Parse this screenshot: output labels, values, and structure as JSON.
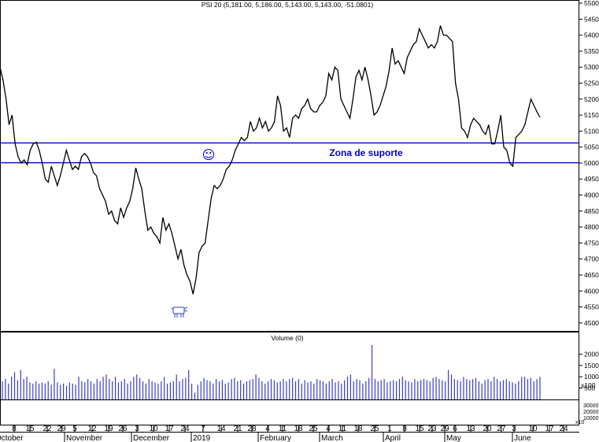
{
  "chart_data": {
    "type": "line",
    "title": "PSI 20 (5,181.00, 5,186.00, 5,143.00, 5,143.00, -51.0801)",
    "volume_title": "Volume (0)",
    "y_ticks": [
      4500,
      4550,
      4600,
      4650,
      4700,
      4750,
      4800,
      4850,
      4900,
      4950,
      5000,
      5050,
      5100,
      5150,
      5200,
      5250,
      5300,
      5350,
      5400,
      5450,
      5500
    ],
    "ylim": [
      4475,
      5510
    ],
    "volume_ticks": [
      {
        "v": 2000,
        "label": "2000"
      },
      {
        "v": 1500,
        "label": "1500"
      },
      {
        "v": 1000,
        "label": "1000"
      },
      {
        "v": 500,
        "label": "500"
      }
    ],
    "volume_multiplier": "x100",
    "volume_ylim": [
      0,
      2500
    ],
    "lower_ticks": [
      "30000",
      "20000",
      "10000"
    ],
    "lower_multiplier": "x10",
    "day_ticks": [
      "8",
      "15",
      "22",
      "29",
      "5",
      "12",
      "19",
      "26",
      "3",
      "10",
      "17",
      "24",
      "7",
      "14",
      "21",
      "28",
      "4",
      "11",
      "18",
      "25",
      "4",
      "11",
      "18",
      "25",
      "1",
      "8",
      "15",
      "23",
      "29",
      "6",
      "13",
      "20",
      "27",
      "3",
      "10",
      "17",
      "24"
    ],
    "month_labels": [
      "October",
      "November",
      "December",
      "2019",
      "February",
      "March",
      "April",
      "May",
      "June"
    ],
    "support_zone": {
      "label": "Zona de suporte",
      "upper": 5063,
      "lower": 5001,
      "color": "#0000cc"
    },
    "smiley": "☺",
    "series": [
      {
        "values": [
          5300,
          5260,
          5200,
          5120,
          5150,
          5060,
          5020,
          5000,
          5010,
          4995,
          5040,
          5060,
          5065,
          5040,
          5000,
          4950,
          4940,
          4990,
          4960,
          4930,
          4960,
          5000,
          5040,
          5010,
          4980,
          4990,
          4980,
          5020,
          5030,
          5020,
          5000,
          4970,
          4960,
          4920,
          4900,
          4880,
          4840,
          4850,
          4820,
          4810,
          4860,
          4830,
          4860,
          4880,
          4920,
          4985,
          4950,
          4920,
          4850,
          4790,
          4800,
          4780,
          4770,
          4750,
          4830,
          4790,
          4810,
          4780,
          4740,
          4700,
          4730,
          4680,
          4650,
          4630,
          4590,
          4640,
          4720,
          4740,
          4750,
          4820,
          4890,
          4930,
          4920,
          4930,
          4950,
          4980,
          4990,
          5010,
          5040,
          5060,
          5080,
          5070,
          5080,
          5130,
          5100,
          5110,
          5140,
          5110,
          5130,
          5100,
          5110,
          5130,
          5210,
          5180,
          5100,
          5110,
          5080,
          5140,
          5150,
          5140,
          5170,
          5180,
          5200,
          5170,
          5160,
          5160,
          5180,
          5190,
          5210,
          5280,
          5260,
          5300,
          5290,
          5200,
          5180,
          5160,
          5140,
          5200,
          5270,
          5290,
          5260,
          5300,
          5260,
          5210,
          5150,
          5160,
          5180,
          5210,
          5240,
          5290,
          5360,
          5310,
          5320,
          5300,
          5280,
          5330,
          5350,
          5370,
          5380,
          5420,
          5400,
          5380,
          5360,
          5370,
          5360,
          5380,
          5430,
          5400,
          5400,
          5390,
          5380,
          5250,
          5200,
          5110,
          5100,
          5080,
          5120,
          5140,
          5130,
          5120,
          5100,
          5090,
          5120,
          5060,
          5060,
          5100,
          5150,
          5050,
          5040,
          5000,
          4990,
          5080,
          5090,
          5100,
          5120,
          5160,
          5200,
          5180,
          5160,
          5143
        ]
      }
    ],
    "volume": [
      800,
      900,
      700,
      1000,
      1200,
      850,
      1300,
      900,
      1000,
      750,
      700,
      800,
      700,
      750,
      700,
      800,
      650,
      1350,
      750,
      650,
      700,
      600,
      750,
      700,
      650,
      1000,
      800,
      750,
      900,
      800,
      700,
      900,
      800,
      1000,
      1100,
      900,
      800,
      1000,
      750,
      800,
      900,
      700,
      800,
      1000,
      1100,
      950,
      800,
      700,
      900,
      800,
      750,
      700,
      800,
      1000,
      700,
      750,
      800,
      1100,
      800,
      900,
      950,
      1300,
      700,
      300,
      650,
      800,
      950,
      850,
      800,
      700,
      900,
      800,
      850,
      700,
      750,
      900,
      950,
      800,
      850,
      700,
      800,
      850,
      900,
      1100,
      950,
      800,
      700,
      800,
      900,
      850,
      750,
      800,
      900,
      800,
      900,
      950,
      800,
      900,
      700,
      850,
      750,
      800,
      700,
      900,
      850,
      800,
      700,
      800,
      900,
      750,
      800,
      700,
      850,
      1000,
      1100,
      800,
      900,
      850,
      700,
      800,
      950,
      2400,
      900,
      800,
      850,
      900,
      750,
      800,
      850,
      800,
      900,
      1000,
      850,
      800,
      750,
      900,
      800,
      850,
      900,
      850,
      800,
      950,
      1000,
      900,
      850,
      800,
      1300,
      1100,
      900,
      850,
      800,
      1000,
      900,
      850,
      900,
      950,
      800,
      700,
      850,
      900,
      800,
      1000,
      900,
      800,
      850,
      900,
      800,
      750,
      700,
      800,
      1000,
      1000,
      900,
      950,
      800,
      900,
      1000
    ]
  }
}
